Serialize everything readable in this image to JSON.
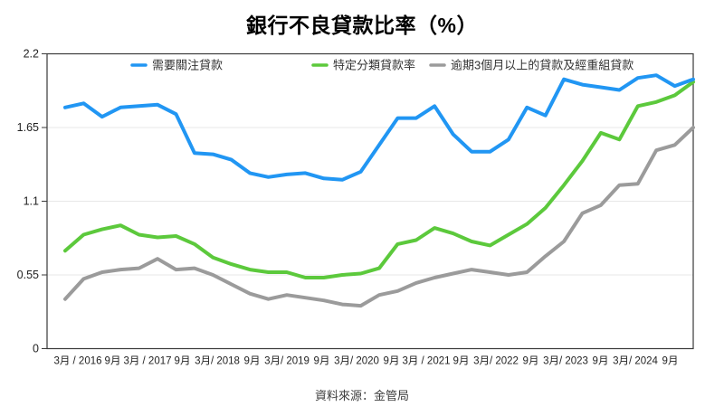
{
  "page": {
    "title": "銀行不良貸款比率（%）",
    "source": "資料來源：金管局"
  },
  "chart_data": {
    "type": "line",
    "title": "銀行不良貸款比率（%）",
    "source_note": "資料來源：金管局",
    "legend_position": "top",
    "grid": "horizontal",
    "ylim": [
      0,
      2.2
    ],
    "y_ticks": [
      "0",
      "0.55",
      "1.1",
      "1.65",
      "2.2"
    ],
    "y_tick_values": [
      0,
      0.55,
      1.1,
      1.65,
      2.2
    ],
    "x_tick_labels": [
      "3月 / 2016",
      "9月",
      "3月 / 2017",
      "9月",
      "3月/ 2018",
      "9月",
      "3月/ 2019",
      "9月",
      "3月/ 2020",
      "9月",
      "3月 / 2021",
      "9月",
      "3月/ 2022",
      "9月",
      "3月/ 2023",
      "9月",
      "3月/ 2024",
      "9月"
    ],
    "x_points_per_tick": 2,
    "colors": {
      "blue": "#2196f3",
      "green": "#5cc93c",
      "gray": "#9b9b9b",
      "gridline": "#e7e7e7",
      "axis": "#3a3a3a",
      "tick_text": "#222222",
      "legend_text": "#333333"
    },
    "series": [
      {
        "name": "需要關注貸款",
        "color": "#2196f3",
        "values": [
          1.8,
          1.83,
          1.73,
          1.8,
          1.81,
          1.82,
          1.75,
          1.46,
          1.45,
          1.41,
          1.31,
          1.28,
          1.3,
          1.31,
          1.27,
          1.26,
          1.32,
          1.52,
          1.72,
          1.72,
          1.81,
          1.6,
          1.47,
          1.47,
          1.56,
          1.8,
          1.74,
          2.01,
          1.97,
          1.95,
          1.93,
          2.02,
          2.04,
          1.96,
          2.01
        ]
      },
      {
        "name": "特定分類貸款率",
        "color": "#5cc93c",
        "values": [
          0.73,
          0.85,
          0.89,
          0.92,
          0.85,
          0.83,
          0.84,
          0.78,
          0.68,
          0.63,
          0.59,
          0.57,
          0.57,
          0.53,
          0.53,
          0.55,
          0.56,
          0.6,
          0.78,
          0.81,
          0.9,
          0.86,
          0.8,
          0.77,
          0.85,
          0.93,
          1.05,
          1.22,
          1.4,
          1.61,
          1.56,
          1.81,
          1.84,
          1.89,
          1.99
        ]
      },
      {
        "name": "逾期3個月以上的貸款及經重組貸款",
        "color": "#9b9b9b",
        "values": [
          0.37,
          0.52,
          0.57,
          0.59,
          0.6,
          0.67,
          0.59,
          0.6,
          0.55,
          0.48,
          0.41,
          0.37,
          0.4,
          0.38,
          0.36,
          0.33,
          0.32,
          0.4,
          0.43,
          0.49,
          0.53,
          0.56,
          0.59,
          0.57,
          0.55,
          0.57,
          0.69,
          0.8,
          1.01,
          1.07,
          1.22,
          1.23,
          1.48,
          1.52,
          1.65
        ]
      }
    ]
  }
}
